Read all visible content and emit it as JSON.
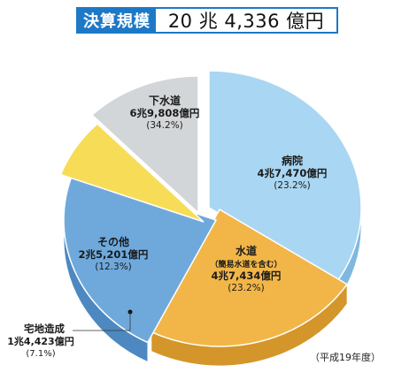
{
  "header": {
    "label": "決算規模",
    "value": "20 兆 4,336 億円"
  },
  "footnote": "（平成19年度）",
  "colors": {
    "header_bg": "#1d78c6",
    "sewer": "#a9d6f2",
    "hospital": "#f2b648",
    "water": "#6fa9dc",
    "land": "#f7dc58",
    "other": "#d3d6d9"
  },
  "chart_data": {
    "type": "pie",
    "title": "",
    "slices": [
      {
        "name": "下水道",
        "sublabel": "",
        "amount": "6兆9,808億円",
        "percent_label": "(34.2%)",
        "value": 34.2,
        "color": "#a9d6f2",
        "side": "#7fb8df"
      },
      {
        "name": "病院",
        "sublabel": "",
        "amount": "4兆7,470億円",
        "percent_label": "(23.2%)",
        "value": 23.2,
        "color": "#f2b648",
        "side": "#d4962a"
      },
      {
        "name": "水道",
        "sublabel": "（簡易水道を含む）",
        "amount": "4兆7,434億円",
        "percent_label": "(23.2%)",
        "value": 23.2,
        "color": "#6fa9dc",
        "side": "#4e88c0"
      },
      {
        "name": "宅地造成",
        "sublabel": "",
        "amount": "1兆4,423億円",
        "percent_label": "(7.1%)",
        "value": 7.1,
        "color": "#f7dc58",
        "side": "#d8bb33"
      },
      {
        "name": "その他",
        "sublabel": "",
        "amount": "2兆5,201億円",
        "percent_label": "(12.3%)",
        "value": 12.3,
        "color": "#d3d6d9",
        "side": "#aeb1b4"
      }
    ]
  }
}
